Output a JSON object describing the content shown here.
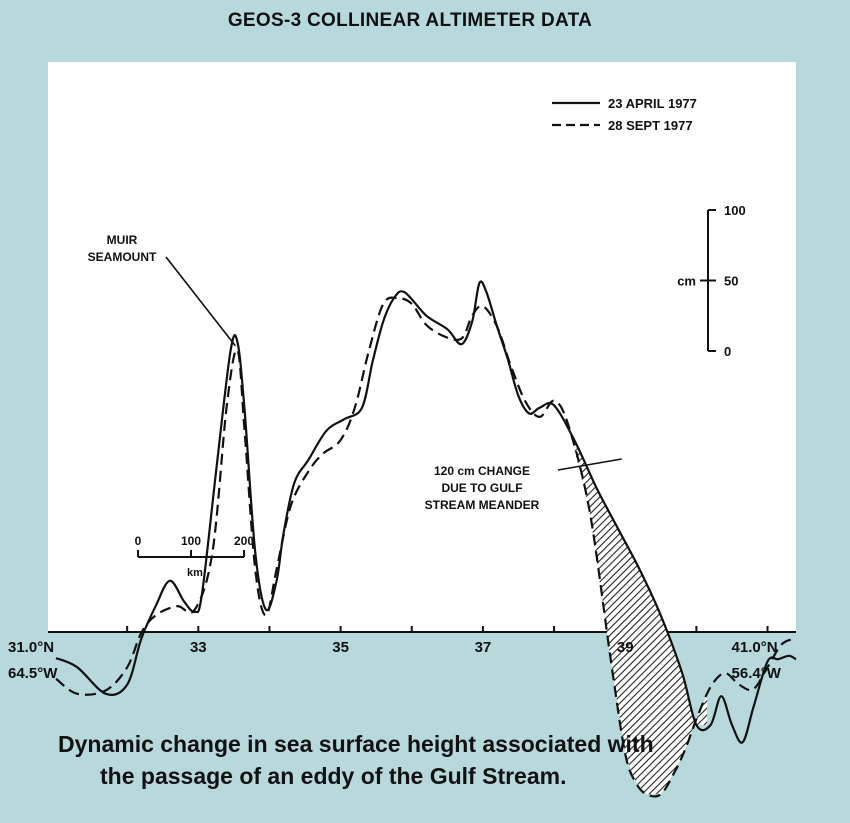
{
  "chart_data": {
    "type": "line",
    "title": "GEOS-3 COLLINEAR ALTIMETER DATA",
    "x_axis": {
      "range": [
        31.0,
        41.4
      ],
      "tick_labels": [
        {
          "x": 31.0,
          "lines": [
            "31.0°N",
            "64.5°W"
          ]
        },
        {
          "x": 33,
          "lines": [
            "33"
          ]
        },
        {
          "x": 35,
          "lines": [
            "35"
          ]
        },
        {
          "x": 37,
          "lines": [
            "37"
          ]
        },
        {
          "x": 39,
          "lines": [
            "39"
          ]
        },
        {
          "x": 41.0,
          "lines": [
            "41.0°N",
            "56.4°W"
          ]
        }
      ],
      "minor_ticks": [
        32,
        33,
        34,
        35,
        36,
        37,
        38,
        39,
        40,
        41
      ]
    },
    "y_range_cm": [
      -320,
      200
    ],
    "vertical_scale": {
      "unit": "cm",
      "labels": [
        "100",
        "50",
        "0"
      ],
      "values": [
        100,
        50,
        0
      ]
    },
    "distance_scale": {
      "labels": [
        "0",
        "100",
        "200"
      ],
      "unit": "km",
      "values": [
        0,
        100,
        200
      ]
    },
    "series": [
      {
        "name": "23 APRIL 1977",
        "style": "solid",
        "x": [
          31.0,
          31.3,
          31.7,
          32.0,
          32.2,
          32.4,
          32.6,
          32.8,
          32.95,
          33.05,
          33.25,
          33.45,
          33.55,
          33.65,
          33.8,
          33.95,
          34.1,
          34.2,
          34.35,
          34.55,
          34.8,
          35.05,
          35.3,
          35.45,
          35.6,
          35.75,
          35.9,
          36.2,
          36.5,
          36.7,
          36.85,
          36.95,
          37.05,
          37.2,
          37.35,
          37.5,
          37.65,
          37.8,
          38.0,
          38.3,
          38.6,
          38.9,
          39.2,
          39.5,
          39.8,
          40.0,
          40.2,
          40.35,
          40.5,
          40.65,
          40.8,
          41.0,
          41.15,
          41.3,
          41.4
        ],
        "y": [
          -197,
          -205,
          -228,
          -220,
          -180,
          -152,
          -130,
          -148,
          -157,
          -142,
          -35,
          68,
          77,
          18,
          -105,
          -155,
          -130,
          -88,
          -45,
          -25,
          0,
          10,
          20,
          60,
          95,
          115,
          120,
          100,
          88,
          75,
          95,
          128,
          120,
          90,
          62,
          30,
          15,
          20,
          22,
          -10,
          -50,
          -85,
          -120,
          -160,
          -210,
          -255,
          -255,
          -230,
          -255,
          -270,
          -240,
          -200,
          -198,
          -195,
          -198
        ]
      },
      {
        "name": "28 SEPT 1977",
        "style": "dashed",
        "x": [
          31.0,
          31.3,
          31.7,
          32.0,
          32.2,
          32.4,
          32.7,
          32.95,
          33.2,
          33.4,
          33.55,
          33.65,
          33.8,
          33.95,
          34.1,
          34.3,
          34.55,
          34.75,
          35.0,
          35.2,
          35.4,
          35.6,
          35.8,
          36.0,
          36.2,
          36.45,
          36.7,
          36.85,
          37.0,
          37.2,
          37.4,
          37.6,
          37.8,
          38.0,
          38.2,
          38.5,
          38.8,
          39.0,
          39.15,
          39.3,
          39.5,
          39.7,
          39.85,
          40.0,
          40.2,
          40.4,
          40.6,
          40.8,
          41.0,
          41.2,
          41.4
        ],
        "y": [
          -215,
          -228,
          -225,
          -205,
          -175,
          -160,
          -152,
          -155,
          -105,
          22,
          70,
          0,
          -120,
          -160,
          -120,
          -65,
          -35,
          -20,
          -8,
          20,
          70,
          110,
          115,
          110,
          92,
          82,
          80,
          100,
          108,
          90,
          55,
          25,
          12,
          26,
          5,
          -70,
          -200,
          -280,
          -305,
          -315,
          -315,
          -295,
          -275,
          -250,
          -222,
          -210,
          -220,
          -224,
          -205,
          -185,
          -180
        ]
      }
    ],
    "shaded_difference": {
      "x_range": [
        38.15,
        40.15
      ],
      "annotation": "120 cm CHANGE DUE TO GULF STREAM MEANDER"
    },
    "annotations": [
      {
        "id": "muir",
        "lines": [
          "MUIR",
          "SEAMOUNT"
        ],
        "points_to_x": 33.55
      },
      {
        "id": "meander",
        "lines": [
          "120 cm CHANGE",
          "DUE TO GULF",
          "STREAM MEANDER"
        ],
        "points_to_x": 38.95
      }
    ],
    "legend": {
      "placement": "top-right"
    },
    "grid": false
  },
  "caption": {
    "line1": "Dynamic change in sea surface height associated with",
    "line2": "the passage of an eddy of the Gulf Stream."
  }
}
